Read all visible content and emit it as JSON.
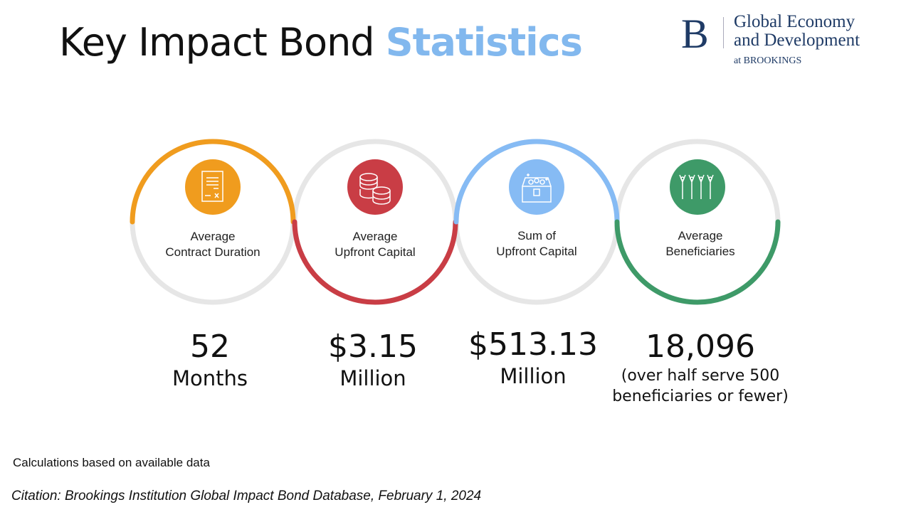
{
  "title": {
    "main": "Key Impact Bond",
    "highlight": "Statistics"
  },
  "logo": {
    "letter": "B",
    "line1": "Global Economy",
    "line2": "and Development",
    "line3": "at BROOKINGS"
  },
  "stats": [
    {
      "label1": "Average",
      "label2": "Contract Duration",
      "value": "52",
      "unit": "Months",
      "icon": "document-contract-icon",
      "color": "#f09c1e"
    },
    {
      "label1": "Average",
      "label2": "Upfront Capital",
      "value": "$3.15",
      "unit": "Million",
      "icon": "coins-stack-icon",
      "color": "#c93d45"
    },
    {
      "label1": "Sum of",
      "label2": "Upfront Capital",
      "value": "$513.13",
      "unit": "Million",
      "icon": "treasure-chest-icon",
      "color": "#86bbf4"
    },
    {
      "label1": "Average",
      "label2": "Beneficiaries",
      "value": "18,096",
      "unit": "(over half serve 500",
      "unit2": "beneficiaries or fewer)",
      "icon": "people-cheering-icon",
      "color": "#3e9a68"
    }
  ],
  "note": "Calculations based on available data",
  "citation": "Citation: Brookings Institution Global Impact Bond Database, February 1, 2024"
}
